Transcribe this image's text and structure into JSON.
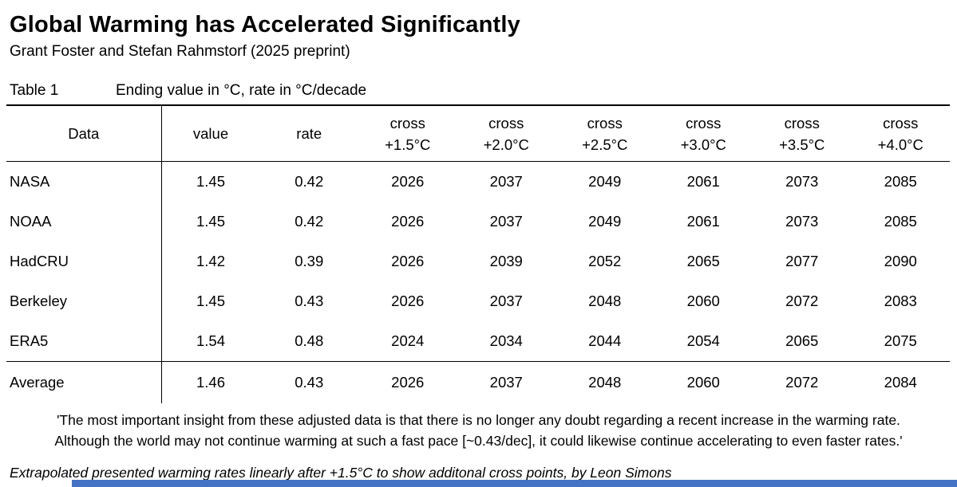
{
  "header": {
    "title": "Global Warming has Accelerated Significantly",
    "subtitle": "Grant Foster and Stefan Rahmstorf (2025 preprint)"
  },
  "table": {
    "label": "Table 1",
    "caption": "Ending value in °C, rate in °C/decade",
    "columns": {
      "data": "Data",
      "value": "value",
      "rate": "rate"
    },
    "cross_columns": [
      {
        "top": "cross",
        "bottom": "+1.5°C"
      },
      {
        "top": "cross",
        "bottom": "+2.0°C"
      },
      {
        "top": "cross",
        "bottom": "+2.5°C"
      },
      {
        "top": "cross",
        "bottom": "+3.0°C"
      },
      {
        "top": "cross",
        "bottom": "+3.5°C"
      },
      {
        "top": "cross",
        "bottom": "+4.0°C"
      }
    ],
    "rows": [
      {
        "name": "NASA",
        "values": [
          "1.45",
          "0.42",
          "2026",
          "2037",
          "2049",
          "2061",
          "2073",
          "2085"
        ]
      },
      {
        "name": "NOAA",
        "values": [
          "1.45",
          "0.42",
          "2026",
          "2037",
          "2049",
          "2061",
          "2073",
          "2085"
        ]
      },
      {
        "name": "HadCRU",
        "values": [
          "1.42",
          "0.39",
          "2026",
          "2039",
          "2052",
          "2065",
          "2077",
          "2090"
        ]
      },
      {
        "name": "Berkeley",
        "values": [
          "1.45",
          "0.43",
          "2026",
          "2037",
          "2048",
          "2060",
          "2072",
          "2083"
        ]
      },
      {
        "name": "ERA5",
        "values": [
          "1.54",
          "0.48",
          "2024",
          "2034",
          "2044",
          "2054",
          "2065",
          "2075"
        ]
      }
    ],
    "average_row": {
      "name": "Average",
      "values": [
        "1.46",
        "0.43",
        "2026",
        "2037",
        "2048",
        "2060",
        "2072",
        "2084"
      ]
    }
  },
  "quote": {
    "line1": "'The most important insight from these adjusted data is that there is no longer any doubt regarding a recent increase in the warming rate.",
    "line2": "Although the world may not continue warming at such a fast pace [~0.43/dec], it could likewise continue accelerating to even faster rates.'"
  },
  "footnote": "Extrapolated presented warming rates linearly after +1.5°C to show additonal cross points, by Leon Simons",
  "accent": {
    "bottom_bar_color": "#4472c4"
  }
}
